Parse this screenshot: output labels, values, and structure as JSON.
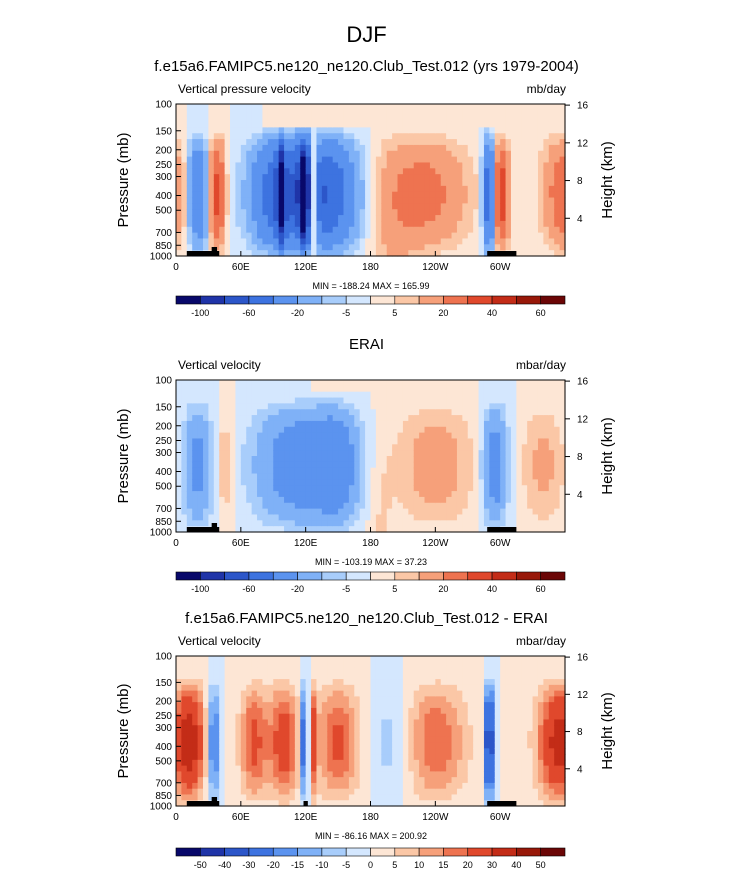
{
  "page": {
    "title": "DJF"
  },
  "palette": [
    "#08086a",
    "#1f34a8",
    "#2c56c9",
    "#3d73e0",
    "#5b93ef",
    "#7fb1f7",
    "#a8cdfb",
    "#d4e7fe",
    "#fde6d5",
    "#fbc7a6",
    "#f6a07a",
    "#ee7350",
    "#e0482c",
    "#c32c17",
    "#981809",
    "#6b0606"
  ],
  "colorbar_labels": {
    "panel1": [
      "-100",
      "-60",
      "-20",
      "-5",
      "5",
      "20",
      "40",
      "60"
    ],
    "panel2": [
      "-100",
      "-60",
      "-20",
      "-5",
      "5",
      "20",
      "40",
      "60"
    ],
    "panel3": [
      "-50",
      "-40",
      "-30",
      "-20",
      "-15",
      "-10",
      "-5",
      "0",
      "5",
      "10",
      "15",
      "20",
      "30",
      "40",
      "50"
    ]
  },
  "chart_data": [
    {
      "id": "panel1",
      "type": "heatmap",
      "title": "f.e15a6.FAMIPC5.ne120_ne120.Club_Test.012 (yrs 1979-2004)",
      "left_label": "Vertical pressure velocity",
      "right_label": "mb/day",
      "ylabel": "Pressure (mb)",
      "ylabel_right": "Height (km)",
      "x_ticks": [
        "0",
        "60E",
        "120E",
        "180",
        "120W",
        "60W"
      ],
      "y_ticks": [
        "100",
        "150",
        "200",
        "250",
        "300",
        "400",
        "500",
        "700",
        "850",
        "1000"
      ],
      "y_right_ticks": [
        "4",
        "8",
        "12",
        "16"
      ],
      "xlim": [
        0,
        360
      ],
      "ylim": [
        1000,
        100
      ],
      "min": -188.24,
      "max": 165.99,
      "minmax_text": "MIN = -188.24  MAX = 165.99"
    },
    {
      "id": "panel2",
      "type": "heatmap",
      "title": "ERAI",
      "left_label": "Vertical velocity",
      "right_label": "mbar/day",
      "ylabel": "Pressure (mb)",
      "ylabel_right": "Height (km)",
      "x_ticks": [
        "0",
        "60E",
        "120E",
        "180",
        "120W",
        "60W"
      ],
      "y_ticks": [
        "100",
        "150",
        "200",
        "250",
        "300",
        "400",
        "500",
        "700",
        "850",
        "1000"
      ],
      "y_right_ticks": [
        "4",
        "8",
        "12",
        "16"
      ],
      "xlim": [
        0,
        360
      ],
      "ylim": [
        1000,
        100
      ],
      "min": -103.19,
      "max": 37.23,
      "minmax_text": "MIN = -103.19  MAX =  37.23"
    },
    {
      "id": "panel3",
      "type": "heatmap",
      "title": "f.e15a6.FAMIPC5.ne120_ne120.Club_Test.012 - ERAI",
      "left_label": "Vertical velocity",
      "right_label": "mbar/day",
      "ylabel": "Pressure (mb)",
      "ylabel_right": "Height (km)",
      "x_ticks": [
        "0",
        "60E",
        "120E",
        "180",
        "120W",
        "60W"
      ],
      "y_ticks": [
        "100",
        "150",
        "200",
        "250",
        "300",
        "400",
        "500",
        "700",
        "850",
        "1000"
      ],
      "y_right_ticks": [
        "4",
        "8",
        "12",
        "16"
      ],
      "xlim": [
        0,
        360
      ],
      "ylim": [
        1000,
        100
      ],
      "min": -86.16,
      "max": 200.92,
      "minmax_text": "MIN = -86.16  MAX = 200.92"
    }
  ]
}
